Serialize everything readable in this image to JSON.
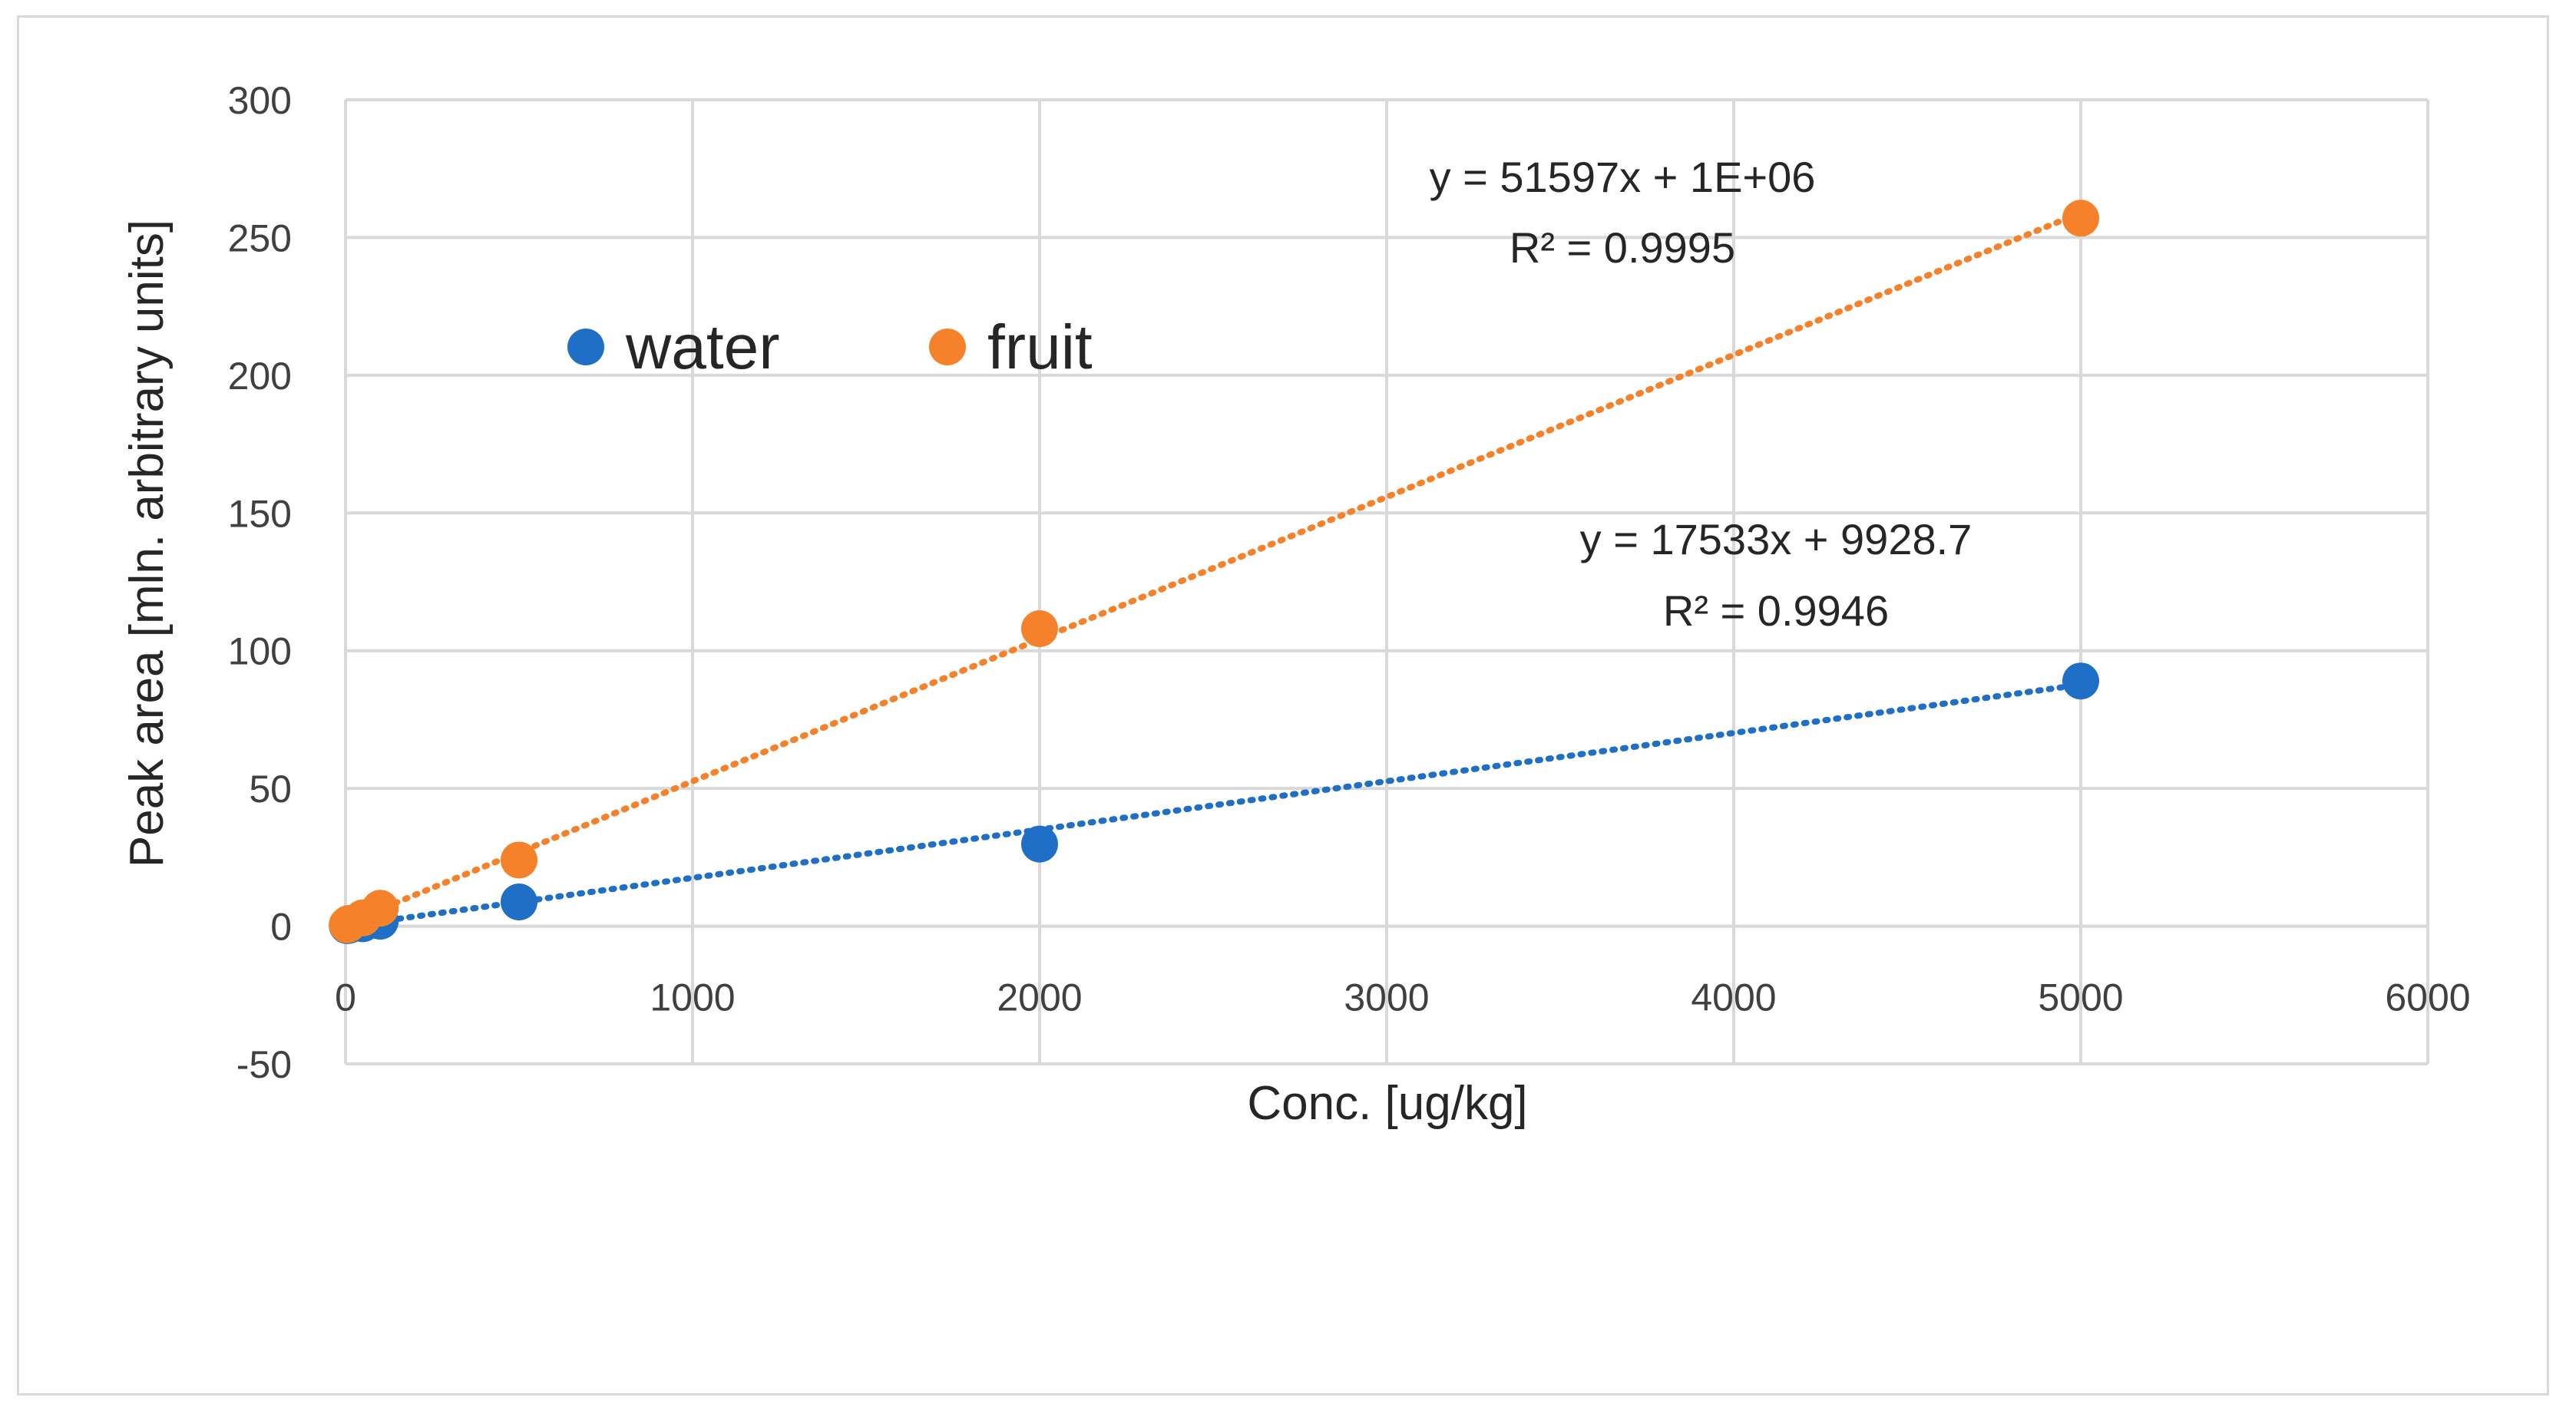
{
  "chart_data": {
    "type": "scatter",
    "title": "",
    "xlabel": "Conc. [ug/kg]",
    "ylabel": "Peak area [mln. arbitrary units]",
    "xlim": [
      0,
      6000
    ],
    "ylim": [
      -50,
      300
    ],
    "xticks": [
      0,
      1000,
      2000,
      3000,
      4000,
      5000,
      6000
    ],
    "yticks": [
      -50,
      0,
      50,
      100,
      150,
      200,
      250,
      300
    ],
    "grid": true,
    "legend_position": "upper-left inside plot",
    "series": [
      {
        "name": "water",
        "color": "#1f6fc6",
        "points": [
          [
            5,
            0.2
          ],
          [
            10,
            0.3
          ],
          [
            50,
            0.9
          ],
          [
            100,
            1.8
          ],
          [
            500,
            8.8
          ],
          [
            2000,
            29.8
          ],
          [
            5000,
            89.0
          ]
        ],
        "trendline": {
          "slope": 0.017533,
          "intercept": 0.0099287
        },
        "equation": "y = 17533x + 9928.7",
        "r2": "R² = 0.9946"
      },
      {
        "name": "fruit",
        "color": "#f5822a",
        "points": [
          [
            5,
            0.5
          ],
          [
            10,
            1.0
          ],
          [
            50,
            3.0
          ],
          [
            100,
            6.5
          ],
          [
            500,
            24.0
          ],
          [
            2000,
            108.0
          ],
          [
            5000,
            257.0
          ]
        ],
        "trendline": {
          "slope": 0.051597,
          "intercept": 1.0
        },
        "equation": "y = 51597x + 1E+06",
        "r2": "R² = 0.9995"
      }
    ]
  }
}
